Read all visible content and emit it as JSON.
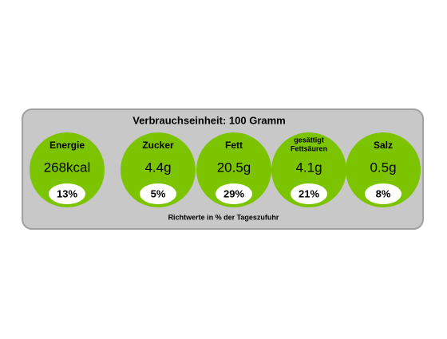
{
  "panel": {
    "title": "Verbrauchseinheit: 100 Gramm",
    "footer": "Richtwerte in % der Tageszufuhr",
    "nutrients": [
      {
        "label_lines": [
          "Energie"
        ],
        "amount": "268kcal",
        "percent": "13%"
      },
      {
        "label_lines": [
          "Zucker"
        ],
        "amount": "4.4g",
        "percent": "5%"
      },
      {
        "label_lines": [
          "Fett"
        ],
        "amount": "20.5g",
        "percent": "29%"
      },
      {
        "label_lines": [
          "gesättigt",
          "Fettsäuren"
        ],
        "amount": "4.1g",
        "percent": "21%"
      },
      {
        "label_lines": [
          "Salz"
        ],
        "amount": "0.5g",
        "percent": "8%"
      }
    ]
  }
}
